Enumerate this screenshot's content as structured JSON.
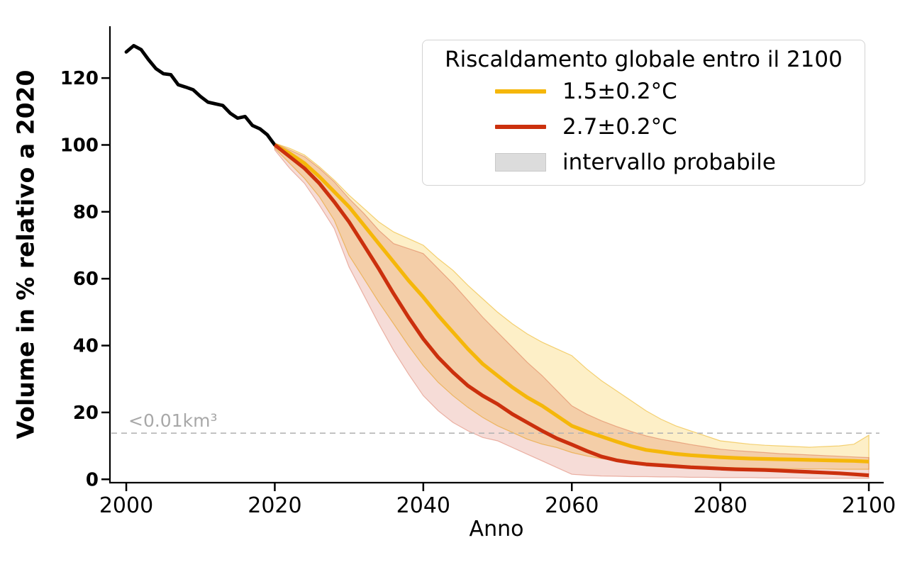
{
  "figure": {
    "background": "#ffffff"
  },
  "chart_data": {
    "type": "line",
    "title": "",
    "xlabel": "Anno",
    "ylabel": "Volume in % relativo a 2020",
    "xlim": [
      1997.8,
      2102.0
    ],
    "ylim": [
      -1,
      135.5
    ],
    "grid": false,
    "x_tick_values": [
      2000,
      2020,
      2040,
      2060,
      2080,
      2100
    ],
    "x_tick_labels": [
      "2000",
      "2020",
      "2040",
      "2060",
      "2080",
      "2100"
    ],
    "y_tick_values": [
      0,
      20,
      40,
      60,
      80,
      100,
      120
    ],
    "y_tick_labels": [
      "0",
      "20",
      "40",
      "60",
      "80",
      "100",
      "120"
    ],
    "threshold": {
      "value": 13.8,
      "label": "<0.01km³",
      "line_style": "dashed",
      "color": "#b5b5b5",
      "label_color": "#a8a8a8"
    },
    "legend": {
      "title": "Riscaldamento globale entro il 2100",
      "position": "upper right",
      "entries": [
        {
          "label": "1.5±0.2°C",
          "swatch": "line",
          "color": "#F5B70A"
        },
        {
          "label": "2.7±0.2°C",
          "swatch": "line",
          "color": "#CB300D"
        },
        {
          "label": "intervallo probabile",
          "swatch": "box",
          "color": "#DCDCDC"
        }
      ]
    },
    "series": [
      {
        "id": "historical",
        "color": "#000000",
        "x": [
          2000,
          2001,
          2002,
          2003,
          2004,
          2005,
          2006,
          2007,
          2008,
          2009,
          2010,
          2011,
          2012,
          2013,
          2014,
          2015,
          2016,
          2017,
          2018,
          2019,
          2020
        ],
        "y": [
          127.8,
          129.7,
          128.5,
          125.5,
          122.8,
          121.3,
          121.0,
          118.0,
          117.3,
          116.5,
          114.5,
          112.8,
          112.3,
          111.8,
          109.5,
          108.0,
          108.5,
          105.8,
          104.8,
          103.0,
          100.0
        ]
      },
      {
        "id": "scenario_1p5",
        "label": "1.5±0.2°C",
        "color": "#F5B70A",
        "band_fill": "rgba(244,183,0,0.22)",
        "band_edge": "rgba(234,170,0,0.5)",
        "x": [
          2020,
          2022,
          2024,
          2026,
          2028,
          2030,
          2032,
          2034,
          2036,
          2038,
          2040,
          2042,
          2044,
          2046,
          2048,
          2050,
          2052,
          2054,
          2056,
          2058,
          2060,
          2062,
          2064,
          2066,
          2068,
          2070,
          2072,
          2074,
          2076,
          2078,
          2080,
          2082,
          2084,
          2086,
          2088,
          2090,
          2092,
          2094,
          2096,
          2098,
          2100
        ],
        "y": [
          100,
          97.5,
          94.5,
          90.5,
          86,
          81.5,
          76,
          70.5,
          65,
          59.5,
          54.5,
          49,
          44,
          39,
          34.5,
          31,
          27.5,
          24.5,
          22,
          19,
          16,
          14.3,
          12.8,
          11.3,
          9.9,
          8.8,
          8.2,
          7.6,
          7.2,
          6.9,
          6.6,
          6.4,
          6.2,
          6.1,
          6.0,
          5.9,
          5.8,
          5.7,
          5.6,
          5.5,
          5.3
        ],
        "band_low": [
          99,
          94.5,
          90,
          84.5,
          77.5,
          67,
          60,
          53,
          46.5,
          40,
          34,
          29,
          25,
          21.5,
          18.5,
          16,
          14,
          12,
          10.5,
          9.5,
          8,
          7,
          6.2,
          5.6,
          5.2,
          4.8,
          4.5,
          4.2,
          4.0,
          3.8,
          3.6,
          3.5,
          3.4,
          3.3,
          3.2,
          3.2,
          3.1,
          3.1,
          3.0,
          3.0,
          3.0
        ],
        "band_high": [
          100.5,
          99,
          97,
          93.5,
          89.5,
          85,
          81,
          77,
          74,
          72,
          70,
          66,
          62.5,
          58,
          54,
          50,
          46.5,
          43.5,
          41,
          39,
          37,
          33,
          29.5,
          26.5,
          23.5,
          20.5,
          18,
          16,
          14.5,
          13,
          11.5,
          11,
          10.5,
          10.2,
          10,
          9.8,
          9.6,
          9.8,
          10,
          10.5,
          13.2
        ]
      },
      {
        "id": "scenario_2p7",
        "label": "2.7±0.2°C",
        "color": "#CB300D",
        "band_fill": "rgba(201,50,16,0.17)",
        "band_edge": "rgba(201,50,16,0.32)",
        "x": [
          2020,
          2022,
          2024,
          2026,
          2028,
          2030,
          2032,
          2034,
          2036,
          2038,
          2040,
          2042,
          2044,
          2046,
          2048,
          2050,
          2052,
          2054,
          2056,
          2058,
          2060,
          2062,
          2064,
          2066,
          2068,
          2070,
          2072,
          2074,
          2076,
          2078,
          2080,
          2082,
          2084,
          2086,
          2088,
          2090,
          2092,
          2094,
          2096,
          2098,
          2100
        ],
        "y": [
          100,
          96.5,
          93,
          88.5,
          83,
          77,
          70,
          63,
          55.5,
          48.5,
          42,
          36.5,
          32,
          28,
          25,
          22.5,
          19.5,
          17,
          14.5,
          12.2,
          10.4,
          8.5,
          6.8,
          5.7,
          5.0,
          4.5,
          4.2,
          3.9,
          3.6,
          3.4,
          3.2,
          3.0,
          2.9,
          2.8,
          2.6,
          2.4,
          2.2,
          2.0,
          1.8,
          1.5,
          1.2
        ],
        "band_low": [
          98.5,
          93,
          88.5,
          82,
          75,
          63.5,
          55,
          46.5,
          38.5,
          31.5,
          25,
          20.5,
          17,
          14.5,
          12.5,
          11.5,
          9.5,
          7.5,
          5.5,
          3.5,
          1.5,
          1.2,
          1.0,
          0.9,
          0.8,
          0.8,
          0.7,
          0.7,
          0.6,
          0.6,
          0.5,
          0.5,
          0.5,
          0.4,
          0.4,
          0.4,
          0.3,
          0.3,
          0.3,
          0.3,
          0.3
        ],
        "band_high": [
          100.5,
          98.5,
          96.5,
          93,
          89,
          84,
          79.5,
          74.5,
          70.5,
          69,
          67.5,
          63,
          58.5,
          53.5,
          48.5,
          44,
          39.5,
          35,
          31,
          26.5,
          22,
          19.5,
          17.5,
          15.8,
          14.3,
          13,
          12,
          11.2,
          10.4,
          9.7,
          9.0,
          8.6,
          8.3,
          8.0,
          7.7,
          7.5,
          7.3,
          7.1,
          6.9,
          6.7,
          6.5
        ]
      }
    ]
  }
}
